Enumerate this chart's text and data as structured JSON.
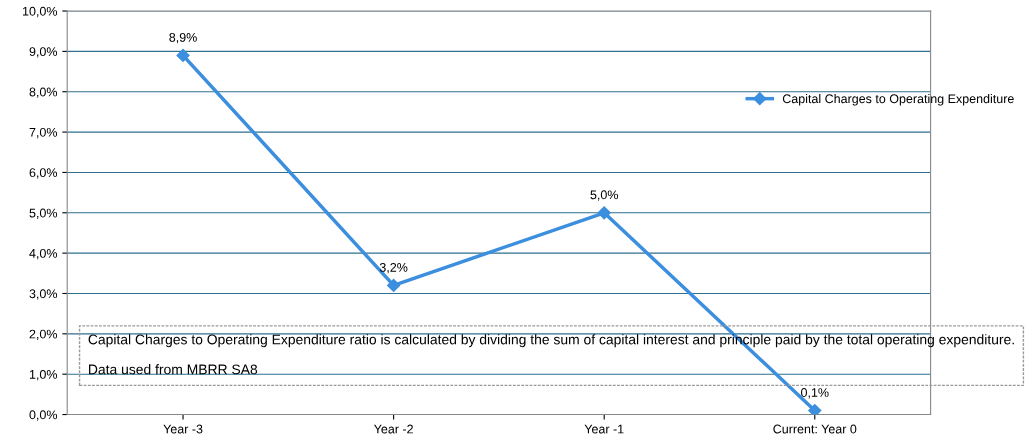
{
  "chart_data": {
    "type": "line",
    "categories": [
      "Year -3",
      "Year -2",
      "Year -1",
      "Current: Year 0"
    ],
    "series": [
      {
        "name": "Capital Charges to Operating Expenditure",
        "color": "#3c8ede",
        "values": [
          8.9,
          3.2,
          5.0,
          0.1
        ],
        "value_labels": [
          "8,9%",
          "3,2%",
          "5,0%",
          "0,1%"
        ]
      }
    ],
    "ylim": [
      0,
      10
    ],
    "yticks": [
      {
        "value": 0,
        "label": "0,0%"
      },
      {
        "value": 1,
        "label": "1,0%"
      },
      {
        "value": 2,
        "label": "2,0%"
      },
      {
        "value": 3,
        "label": "3,0%"
      },
      {
        "value": 4,
        "label": "4,0%"
      },
      {
        "value": 5,
        "label": "5,0%"
      },
      {
        "value": 6,
        "label": "6,0%"
      },
      {
        "value": 7,
        "label": "7,0%"
      },
      {
        "value": 8,
        "label": "8,0%"
      },
      {
        "value": 9,
        "label": "9,0%"
      },
      {
        "value": 10,
        "label": "10,0%"
      }
    ],
    "grid": "y",
    "legend": "right",
    "marker": "diamond",
    "line_style": "solid",
    "annotations": [
      "Capital Charges to Operating Expenditure ratio is calculated by dividing the sum of capital interest and principle paid by the total operating expenditure.",
      "Data used from MBRR SA8"
    ]
  }
}
